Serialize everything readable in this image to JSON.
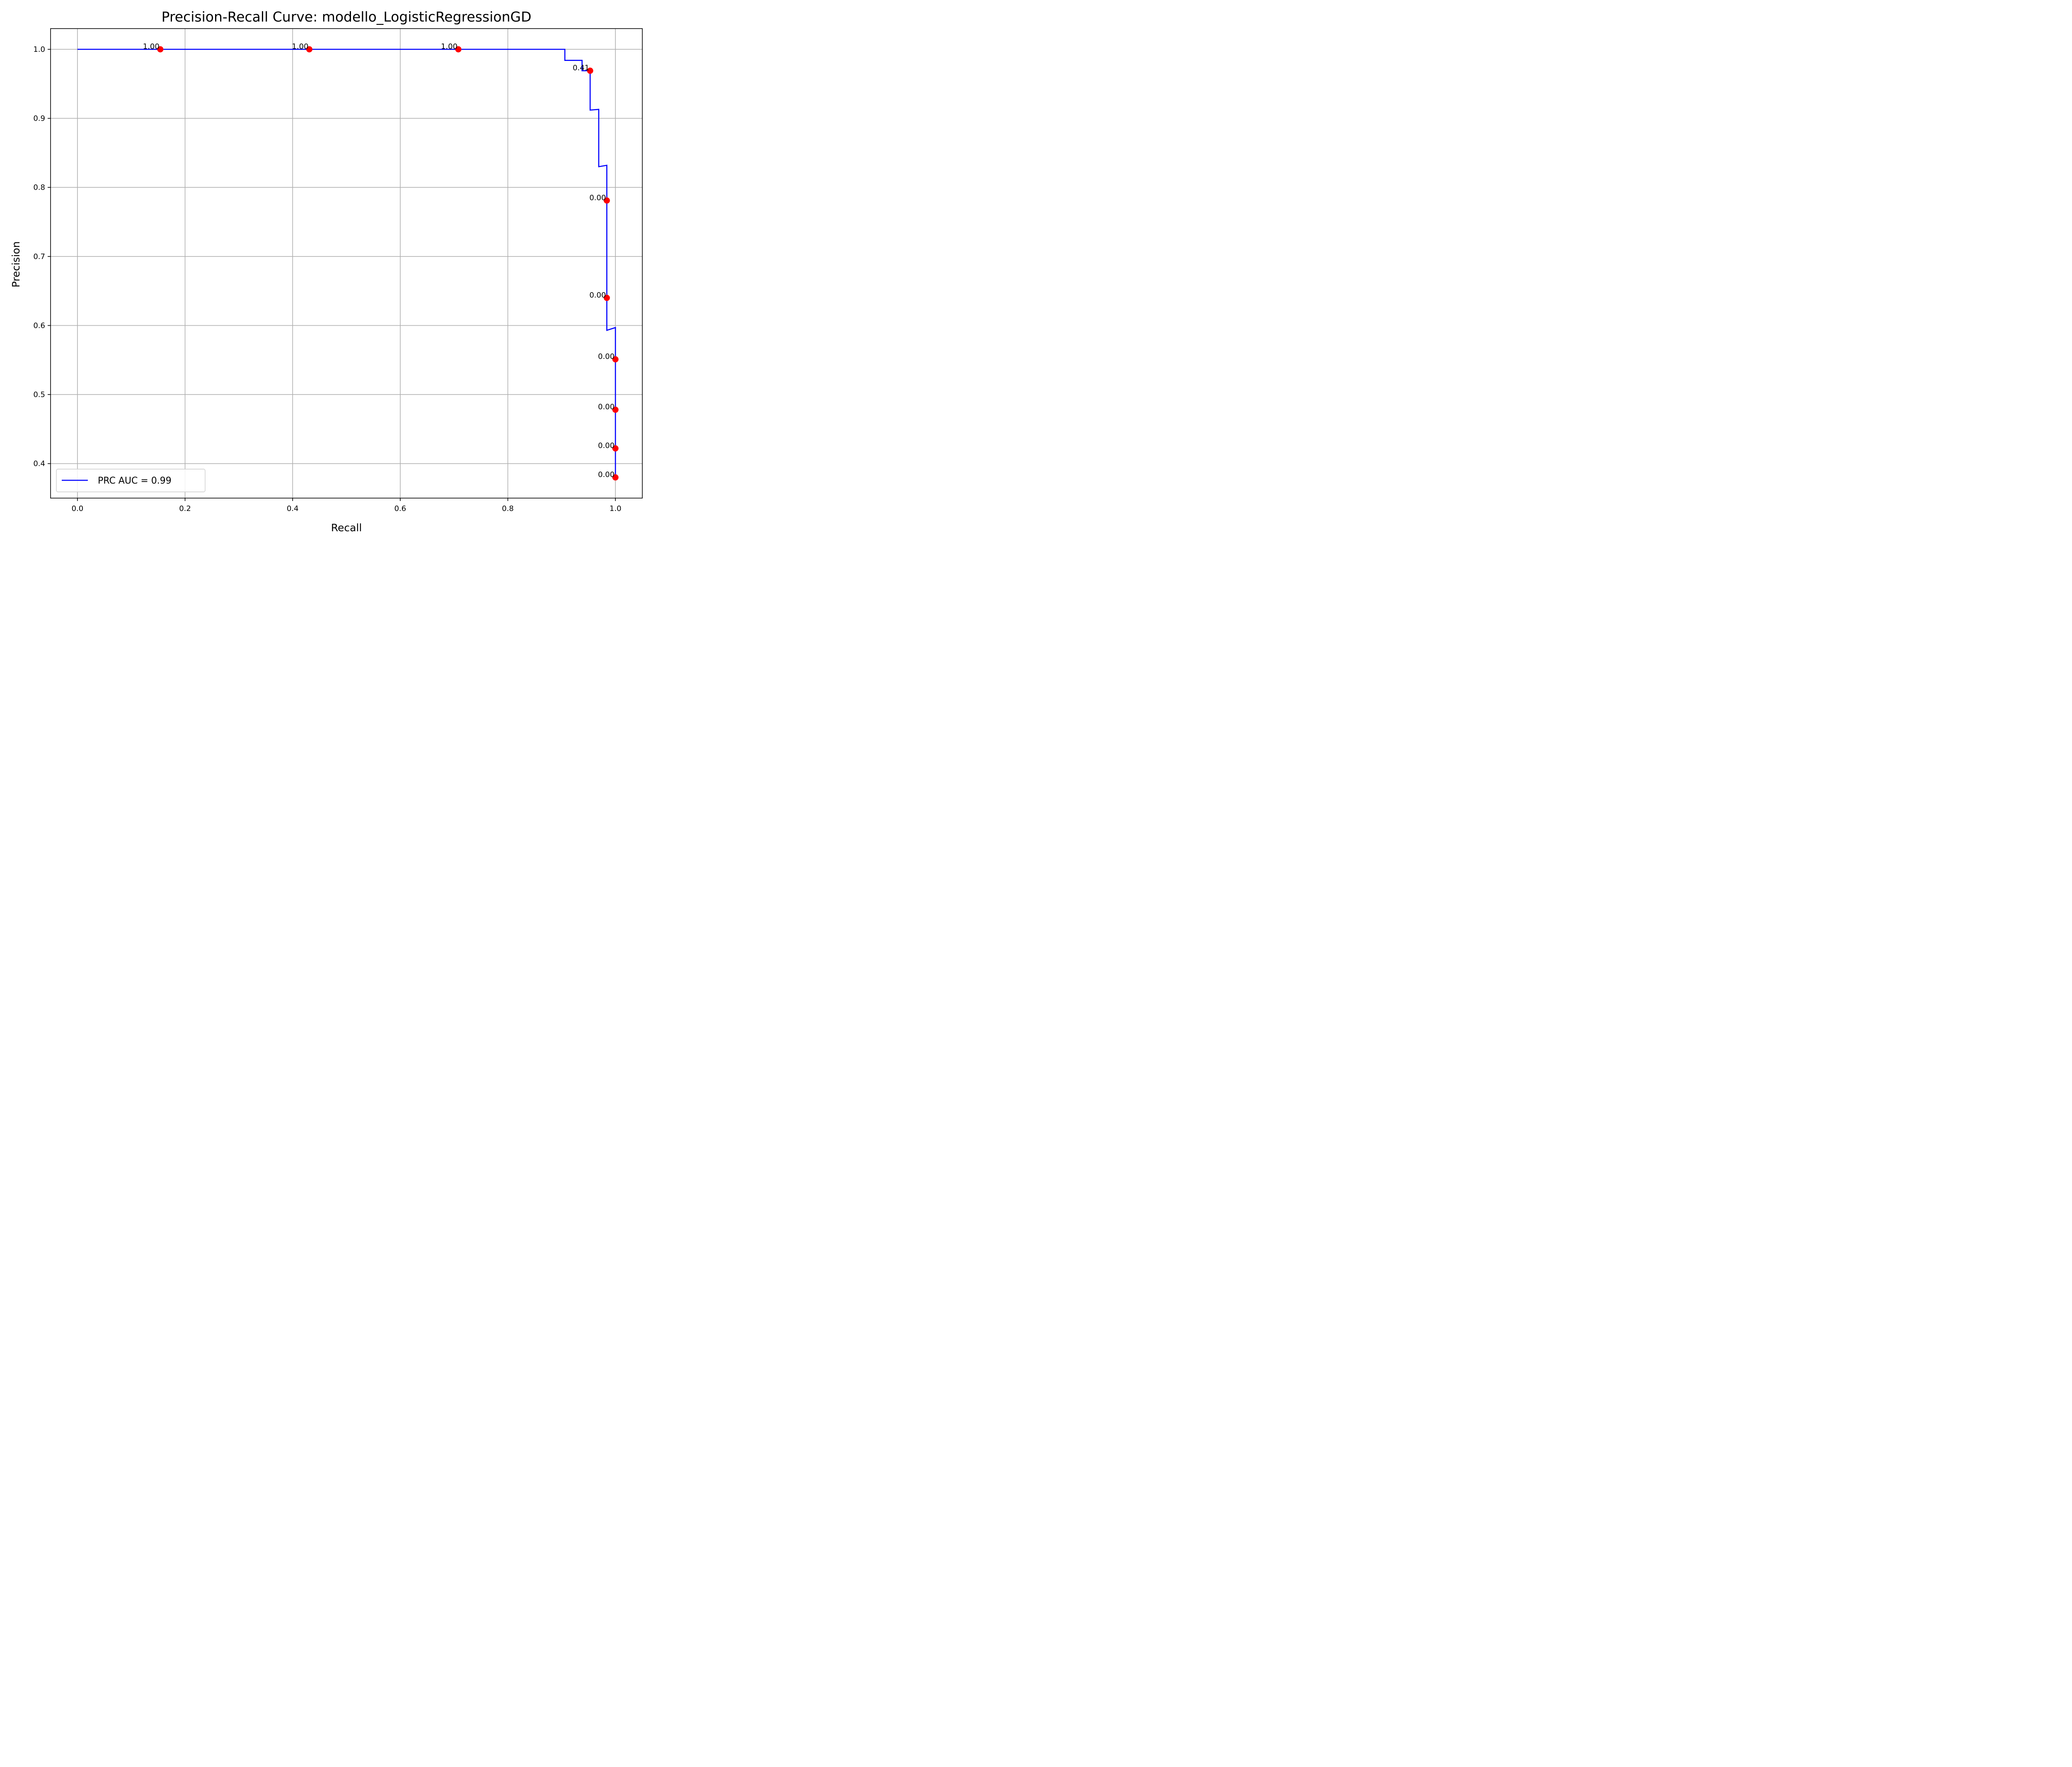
{
  "chart_data": {
    "type": "line",
    "title": "Precision-Recall Curve: modello_LogisticRegressionGD",
    "xlabel": "Recall",
    "ylabel": "Precision",
    "xlim": [
      -0.05,
      1.05
    ],
    "ylim": [
      0.35,
      1.03
    ],
    "grid": true,
    "legend": {
      "position": "lower-left",
      "entries": [
        "PRC AUC = 0.99"
      ]
    },
    "x_ticks": [
      {
        "value": 0.0,
        "label": "0.0"
      },
      {
        "value": 0.2,
        "label": "0.2"
      },
      {
        "value": 0.4,
        "label": "0.4"
      },
      {
        "value": 0.6,
        "label": "0.6"
      },
      {
        "value": 0.8,
        "label": "0.8"
      },
      {
        "value": 1.0,
        "label": "1.0"
      }
    ],
    "y_ticks": [
      {
        "value": 0.4,
        "label": "0.4"
      },
      {
        "value": 0.5,
        "label": "0.5"
      },
      {
        "value": 0.6,
        "label": "0.6"
      },
      {
        "value": 0.7,
        "label": "0.7"
      },
      {
        "value": 0.8,
        "label": "0.8"
      },
      {
        "value": 0.9,
        "label": "0.9"
      },
      {
        "value": 1.0,
        "label": "1.0"
      }
    ],
    "series": [
      {
        "name": "PRC AUC = 0.99",
        "color": "#0000ff",
        "points": [
          [
            0.0,
            1.0
          ],
          [
            0.906,
            1.0
          ],
          [
            0.906,
            0.984
          ],
          [
            0.938,
            0.984
          ],
          [
            0.938,
            0.969
          ],
          [
            0.953,
            0.969
          ],
          [
            0.953,
            0.912
          ],
          [
            0.969,
            0.913
          ],
          [
            0.969,
            0.83
          ],
          [
            0.984,
            0.832
          ],
          [
            0.984,
            0.593
          ],
          [
            1.0,
            0.597
          ],
          [
            1.0,
            0.38
          ]
        ]
      }
    ],
    "threshold_points": {
      "color": "#ff0000",
      "points": [
        {
          "x": 0.154,
          "y": 1.0,
          "label": "1.00"
        },
        {
          "x": 0.431,
          "y": 1.0,
          "label": "1.00"
        },
        {
          "x": 0.708,
          "y": 1.0,
          "label": "1.00"
        },
        {
          "x": 0.953,
          "y": 0.969,
          "label": "0.41"
        },
        {
          "x": 0.984,
          "y": 0.781,
          "label": "0.00"
        },
        {
          "x": 0.984,
          "y": 0.64,
          "label": "0.00"
        },
        {
          "x": 1.0,
          "y": 0.551,
          "label": "0.00"
        },
        {
          "x": 1.0,
          "y": 0.478,
          "label": "0.00"
        },
        {
          "x": 1.0,
          "y": 0.422,
          "label": "0.00"
        },
        {
          "x": 1.0,
          "y": 0.38,
          "label": "0.00"
        }
      ]
    }
  }
}
